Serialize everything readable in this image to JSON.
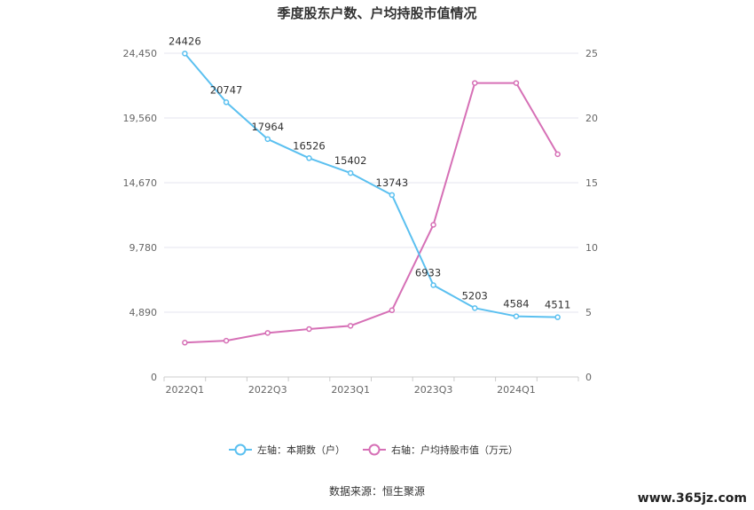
{
  "chart_data": {
    "type": "line",
    "title": "季度股东户数、户均持股市值情况",
    "categories": [
      "2022Q1",
      "2022Q2",
      "2022Q3",
      "2022Q4",
      "2023Q1",
      "2023Q2",
      "2023Q3",
      "2023Q4",
      "2024Q1",
      "2024Q2"
    ],
    "x_tick_labels": [
      "2022Q1",
      "2022Q3",
      "2023Q1",
      "2023Q3",
      "2024Q1"
    ],
    "left_axis": {
      "ticks": [
        0,
        4890,
        9780,
        14670,
        19560,
        24450
      ],
      "tick_labels": [
        "0",
        "4,890",
        "9,780",
        "14,670",
        "19,560",
        "24,450"
      ],
      "ylim": [
        0,
        24450
      ]
    },
    "right_axis": {
      "ticks": [
        0,
        5,
        10,
        15,
        20,
        25
      ],
      "tick_labels": [
        "0",
        "5",
        "10",
        "15",
        "20",
        "25"
      ],
      "ylim": [
        0,
        25
      ]
    },
    "series": [
      {
        "name": "左轴：本期数（户）",
        "axis": "left",
        "color": "#5bc0f0",
        "values": [
          24426,
          20747,
          17964,
          16526,
          15402,
          13743,
          6933,
          5203,
          4584,
          4511
        ],
        "labels": [
          "24426",
          "20747",
          "17964",
          "16526",
          "15402",
          "13743",
          "6933",
          "5203",
          "4584",
          "4511"
        ]
      },
      {
        "name": "右轴：户均持股市值（万元）",
        "axis": "right",
        "color": "#d670b6",
        "values": [
          2.65,
          2.8,
          3.4,
          3.7,
          3.95,
          5.15,
          11.75,
          22.7,
          22.7,
          17.2
        ]
      }
    ],
    "grid": true,
    "legend_position": "bottom"
  },
  "footer": {
    "source": "数据来源：恒生聚源"
  },
  "watermark": "www.365jz.com"
}
